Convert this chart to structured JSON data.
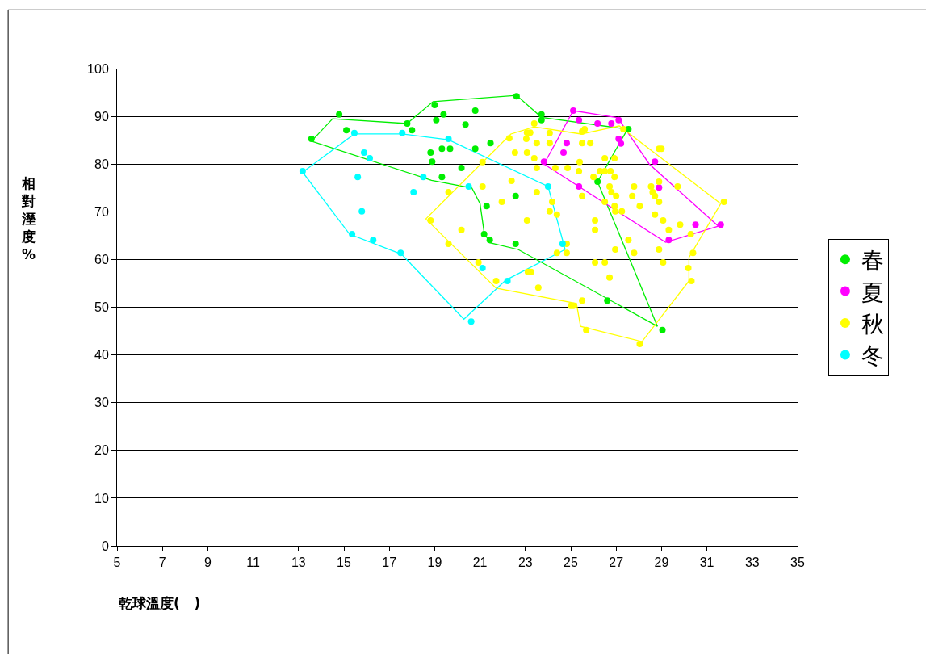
{
  "chart_data": {
    "type": "scatter",
    "xlabel": "乾球溫度(   )",
    "ylabel": "相對溼度%",
    "xlim": [
      5,
      35
    ],
    "xticks": [
      5,
      7,
      9,
      11,
      13,
      15,
      17,
      19,
      21,
      23,
      25,
      27,
      29,
      31,
      33,
      35
    ],
    "ylim": [
      0,
      100
    ],
    "yticks": [
      0,
      10,
      20,
      30,
      40,
      50,
      60,
      70,
      80,
      90,
      100
    ],
    "grid": "y",
    "legend": "right",
    "marker": "circle",
    "line_style": "solid",
    "series": [
      {
        "type": "line",
        "marker": "none",
        "color": "#00ee00",
        "x": [
          13.57,
          14.5,
          17.79,
          18.93,
          22.61,
          23.71,
          27.5
        ],
        "values": [
          84.8,
          89.5,
          88.5,
          93.1,
          94.4,
          89.8,
          87.3
        ]
      },
      {
        "type": "line",
        "marker": "none",
        "color": "#00ee00",
        "x": [
          26.18,
          27.5
        ],
        "values": [
          76.3,
          87.3
        ]
      },
      {
        "type": "line",
        "marker": "none",
        "color": "#00ee00",
        "x": [
          26.18,
          28.82
        ],
        "values": [
          76.3,
          46.0
        ]
      },
      {
        "type": "line",
        "marker": "none",
        "color": "#00ee00",
        "x": [
          13.57,
          18.86,
          20.64,
          21.0,
          21.18,
          21.43,
          22.68,
          28.82
        ],
        "values": [
          84.8,
          76.6,
          75.0,
          71.7,
          65.7,
          63.5,
          62.1,
          46.0
        ]
      },
      {
        "type": "line",
        "marker": "none",
        "color": "#ff00ff",
        "x": [
          23.82,
          25.11,
          27.07,
          28.46,
          31.5
        ],
        "values": [
          80.0,
          91.2,
          89.7,
          80.0,
          67.0
        ]
      },
      {
        "type": "line",
        "marker": "none",
        "color": "#ff00ff",
        "x": [
          23.82,
          29.18,
          31.5
        ],
        "values": [
          80.0,
          63.6,
          67.0
        ]
      },
      {
        "type": "line",
        "marker": "none",
        "color": "#ffff00",
        "x": [
          18.61,
          22.36,
          23.39,
          25.46,
          27.14,
          31.61
        ],
        "values": [
          68.5,
          86.3,
          87.8,
          86.3,
          88.0,
          71.7
        ]
      },
      {
        "type": "line",
        "marker": "none",
        "color": "#ffff00",
        "x": [
          18.61,
          21.71,
          25.25,
          25.43,
          28.14,
          30.21,
          30.21,
          31.61
        ],
        "values": [
          68.5,
          54.0,
          50.8,
          46.0,
          42.8,
          55.5,
          60.4,
          71.7
        ]
      },
      {
        "type": "line",
        "marker": "none",
        "color": "#00ffff",
        "x": [
          13.18,
          15.46,
          17.57,
          19.61,
          24.0,
          24.75
        ],
        "values": [
          78.3,
          86.3,
          86.3,
          85.1,
          75.3,
          62.1
        ]
      },
      {
        "type": "line",
        "marker": "none",
        "color": "#00ffff",
        "x": [
          13.18,
          15.25,
          17.54,
          20.29,
          22.14,
          24.75
        ],
        "values": [
          78.3,
          65.3,
          61.1,
          47.5,
          55.7,
          62.1
        ]
      },
      {
        "name": "春",
        "color": "#00ee00",
        "x": [
          13.57,
          14.79,
          15.11,
          17.79,
          18.0,
          19.0,
          19.39,
          19.07,
          18.82,
          19.32,
          19.68,
          18.89,
          19.32,
          20.18,
          20.36,
          20.79,
          20.79,
          21.46,
          21.29,
          21.18,
          21.43,
          22.57,
          22.57,
          22.61,
          23.71,
          23.71,
          26.18,
          27.54,
          26.61,
          29.04
        ],
        "values": [
          85.3,
          90.4,
          87.1,
          88.5,
          87.1,
          92.4,
          90.4,
          89.2,
          82.4,
          83.2,
          83.2,
          80.5,
          77.3,
          79.2,
          88.3,
          91.2,
          83.2,
          84.4,
          71.2,
          65.3,
          64.1,
          73.3,
          63.3,
          94.2,
          90.4,
          89.2,
          76.3,
          87.3,
          51.4,
          45.2
        ]
      },
      {
        "name": "夏",
        "color": "#ff00ff",
        "x": [
          25.11,
          25.36,
          24.82,
          24.68,
          23.82,
          25.36,
          26.18,
          26.79,
          27.11,
          27.11,
          27.21,
          28.71,
          28.89,
          30.5,
          31.61,
          29.32
        ],
        "values": [
          91.2,
          89.2,
          84.4,
          82.4,
          80.5,
          75.3,
          88.5,
          88.5,
          89.2,
          85.3,
          84.3,
          80.5,
          75.1,
          67.3,
          67.3,
          64.1
        ]
      },
      {
        "name": "秋",
        "color": "#ffff00",
        "x": [
          23.39,
          23.07,
          23.21,
          22.29,
          23.04,
          23.5,
          24.07,
          24.07,
          22.54,
          23.07,
          23.39,
          21.11,
          23.5,
          24.32,
          24.86,
          25.39,
          25.36,
          25.5,
          25.61,
          25.5,
          25.86,
          26.0,
          22.39,
          21.11,
          19.61,
          23.5,
          21.96,
          24.18,
          25.5,
          24.07,
          24.39,
          23.07,
          20.18,
          19.61,
          20.93,
          21.71,
          24.82,
          24.39,
          24.82,
          23.11,
          23.25,
          23.57,
          25.0,
          25.11,
          25.5,
          25.68,
          26.07,
          26.07,
          26.07,
          18.82,
          27.32,
          26.5,
          26.93,
          28.89,
          29.0,
          26.29,
          26.5,
          26.75,
          26.93,
          26.71,
          26.79,
          27.0,
          27.79,
          27.71,
          28.54,
          28.61,
          28.71,
          28.89,
          28.89,
          29.71,
          28.04,
          26.93,
          26.96,
          27.25,
          26.5,
          28.71,
          29.07,
          29.32,
          29.82,
          30.29,
          31.75,
          27.54,
          26.96,
          27.79,
          28.89,
          30.39,
          26.5,
          29.07,
          30.18,
          30.32,
          26.71,
          28.04
        ],
        "values": [
          88.5,
          86.6,
          86.6,
          85.4,
          85.3,
          84.4,
          86.5,
          84.4,
          82.4,
          82.4,
          81.2,
          80.4,
          79.2,
          79.2,
          79.2,
          80.4,
          78.5,
          86.8,
          87.3,
          84.4,
          84.4,
          77.3,
          76.5,
          75.3,
          74.1,
          74.1,
          72.1,
          72.1,
          73.3,
          70.1,
          69.4,
          68.2,
          66.2,
          63.3,
          59.4,
          55.5,
          63.3,
          61.4,
          61.4,
          57.4,
          57.4,
          54.1,
          50.3,
          50.3,
          51.4,
          45.2,
          68.2,
          66.2,
          59.4,
          68.2,
          87.3,
          81.2,
          81.2,
          83.2,
          83.2,
          78.5,
          78.5,
          78.5,
          77.3,
          75.3,
          74.1,
          73.3,
          75.3,
          73.3,
          75.3,
          74.1,
          73.3,
          76.3,
          72.1,
          75.3,
          71.2,
          71.2,
          70.1,
          70.1,
          72.1,
          69.4,
          68.2,
          66.2,
          67.3,
          65.3,
          72.1,
          64.1,
          62.1,
          61.4,
          62.1,
          61.4,
          59.4,
          59.4,
          58.2,
          55.5,
          56.2,
          42.3
        ]
      },
      {
        "name": "冬",
        "color": "#00ffff",
        "x": [
          13.18,
          15.46,
          17.57,
          15.89,
          16.14,
          15.61,
          15.79,
          15.36,
          16.29,
          17.5,
          18.5,
          18.07,
          19.61,
          20.5,
          21.11,
          22.21,
          20.61,
          24.0,
          24.64
        ],
        "values": [
          78.5,
          86.5,
          86.5,
          82.4,
          81.2,
          77.3,
          70.1,
          65.3,
          64.1,
          61.4,
          77.3,
          74.1,
          85.3,
          75.3,
          58.2,
          55.5,
          47.0,
          75.3,
          63.3
        ]
      }
    ]
  }
}
